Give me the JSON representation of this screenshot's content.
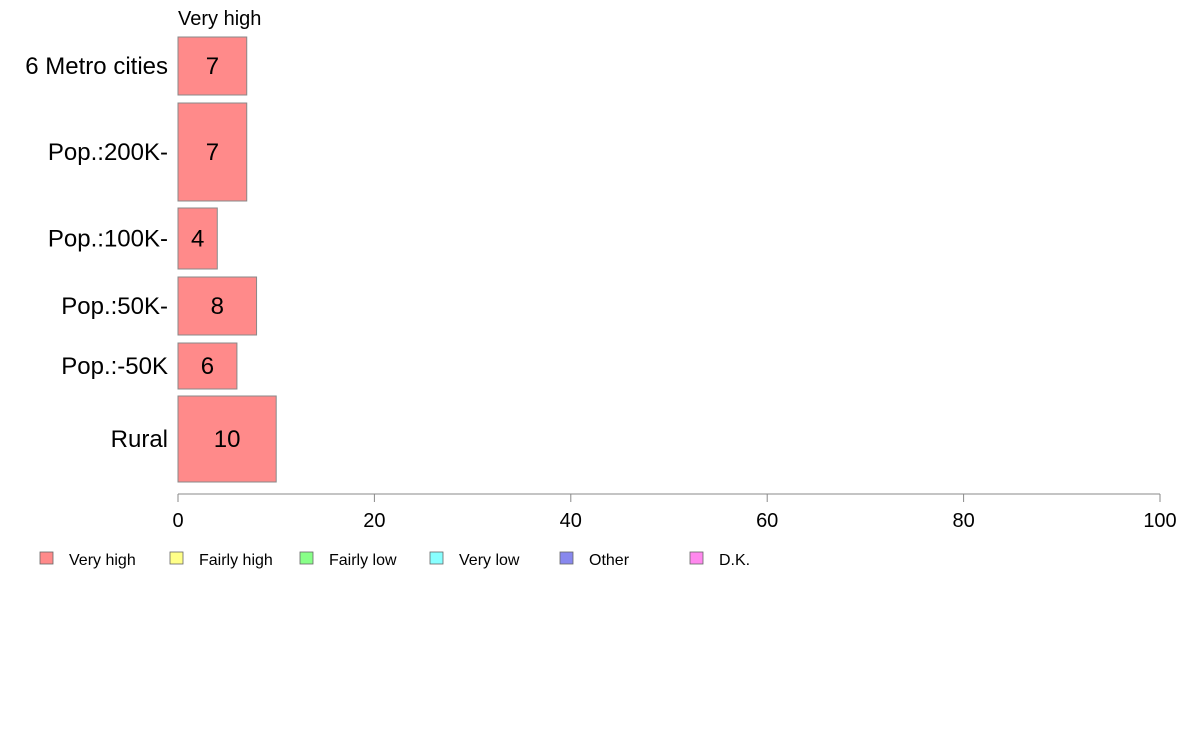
{
  "chart_data": {
    "type": "bar",
    "orientation": "horizontal",
    "stacked": true,
    "series_title": "Very high",
    "categories": [
      "6 Metro cities",
      "Pop.:200K-",
      "Pop.:100K-",
      "Pop.:50K-",
      "Pop.:-50K",
      "Rural"
    ],
    "series": [
      {
        "name": "Very high",
        "color": "#ff8a8a",
        "values": [
          7,
          7,
          4,
          8,
          6,
          10
        ]
      }
    ],
    "value_labels": [
      "7",
      "7",
      "4",
      "8",
      "6",
      "10"
    ],
    "xlim": [
      0,
      100
    ],
    "xticks": [
      0,
      20,
      40,
      60,
      80,
      100
    ],
    "grid": false,
    "legend_position": "bottom-left",
    "legend": [
      {
        "label": "Very high",
        "color": "#ff8a8a"
      },
      {
        "label": "Fairly high",
        "color": "#ffff88"
      },
      {
        "label": "Fairly low",
        "color": "#88ff88"
      },
      {
        "label": "Very low",
        "color": "#88ffff"
      },
      {
        "label": "Other",
        "color": "#8888ee"
      },
      {
        "label": "D.K.",
        "color": "#ff88ee"
      }
    ]
  }
}
